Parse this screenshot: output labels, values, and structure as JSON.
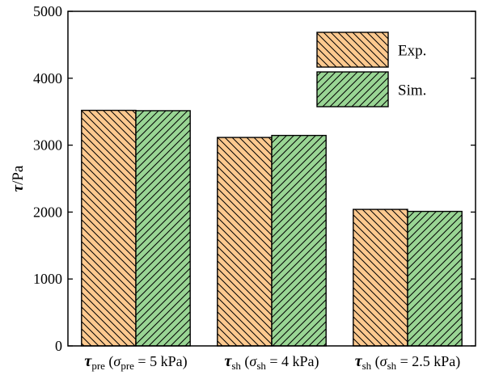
{
  "chart_data": {
    "type": "bar",
    "categories": [
      {
        "main": "τ",
        "main_sub": "pre",
        "open": " (",
        "sym": "σ",
        "sym_sub": "pre",
        "rest": " = 5 kPa)"
      },
      {
        "main": "τ",
        "main_sub": "sh",
        "open": " (",
        "sym": "σ",
        "sym_sub": "sh",
        "rest": " = 4 kPa)"
      },
      {
        "main": "τ",
        "main_sub": "sh",
        "open": " (",
        "sym": "σ",
        "sym_sub": "sh",
        "rest": " = 2.5 kPa)"
      }
    ],
    "series": [
      {
        "name": "Exp.",
        "values": [
          3520,
          3115,
          2040
        ],
        "color": "#fcc98f",
        "hatch": "backslash"
      },
      {
        "name": "Sim.",
        "values": [
          3515,
          3145,
          2010
        ],
        "color": "#99d594",
        "hatch": "slash"
      }
    ],
    "ylabel": {
      "main": "τ",
      "rest": "/Pa"
    },
    "ylim": [
      0,
      5000
    ],
    "yticks": [
      "0",
      "1000",
      "2000",
      "3000",
      "4000",
      "5000"
    ],
    "grid": false,
    "legend_position": "top-right"
  }
}
